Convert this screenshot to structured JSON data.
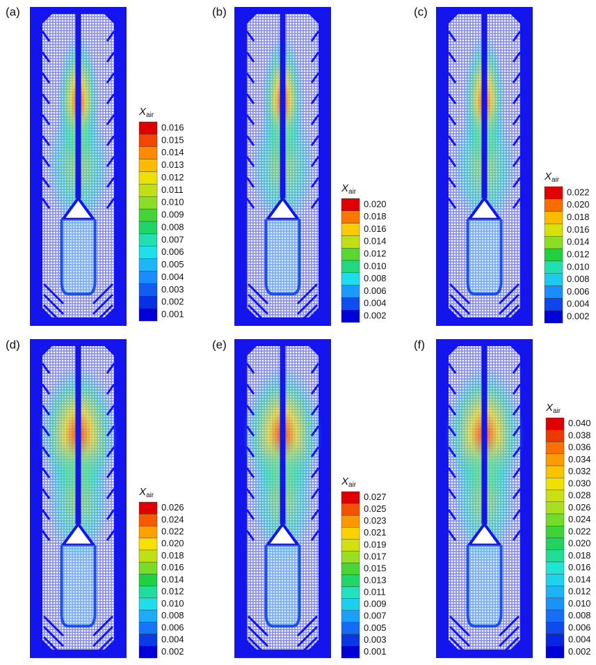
{
  "panels": [
    {
      "label": "(a)",
      "colorbar": {
        "symbol": "X",
        "subscript": "air",
        "ticks": [
          "0.016",
          "0.015",
          "0.014",
          "0.013",
          "0.012",
          "0.011",
          "0.010",
          "0.009",
          "0.008",
          "0.007",
          "0.006",
          "0.005",
          "0.004",
          "0.003",
          "0.002",
          "0.001"
        ]
      }
    },
    {
      "label": "(b)",
      "colorbar": {
        "symbol": "X",
        "subscript": "air",
        "ticks": [
          "0.020",
          "0.018",
          "0.016",
          "0.014",
          "0.012",
          "0.010",
          "0.008",
          "0.006",
          "0.004",
          "0.002"
        ]
      }
    },
    {
      "label": "(c)",
      "colorbar": {
        "symbol": "X",
        "subscript": "air",
        "ticks": [
          "0.022",
          "0.020",
          "0.018",
          "0.016",
          "0.014",
          "0.012",
          "0.010",
          "0.008",
          "0.006",
          "0.004",
          "0.002"
        ]
      }
    },
    {
      "label": "(d)",
      "colorbar": {
        "symbol": "X",
        "subscript": "air",
        "ticks": [
          "0.026",
          "0.024",
          "0.022",
          "0.020",
          "0.018",
          "0.016",
          "0.014",
          "0.012",
          "0.010",
          "0.008",
          "0.006",
          "0.004",
          "0.002"
        ]
      }
    },
    {
      "label": "(e)",
      "colorbar": {
        "symbol": "X",
        "subscript": "air",
        "ticks": [
          "0.027",
          "0.025",
          "0.023",
          "0.021",
          "0.019",
          "0.017",
          "0.015",
          "0.013",
          "0.011",
          "0.009",
          "0.007",
          "0.005",
          "0.003",
          "0.001"
        ]
      }
    },
    {
      "label": "(f)",
      "colorbar": {
        "symbol": "X",
        "subscript": "air",
        "ticks": [
          "0.040",
          "0.038",
          "0.036",
          "0.034",
          "0.032",
          "0.030",
          "0.028",
          "0.026",
          "0.024",
          "0.022",
          "0.020",
          "0.018",
          "0.016",
          "0.014",
          "0.012",
          "0.010",
          "0.008",
          "0.006",
          "0.004",
          "0.002"
        ]
      }
    }
  ]
}
